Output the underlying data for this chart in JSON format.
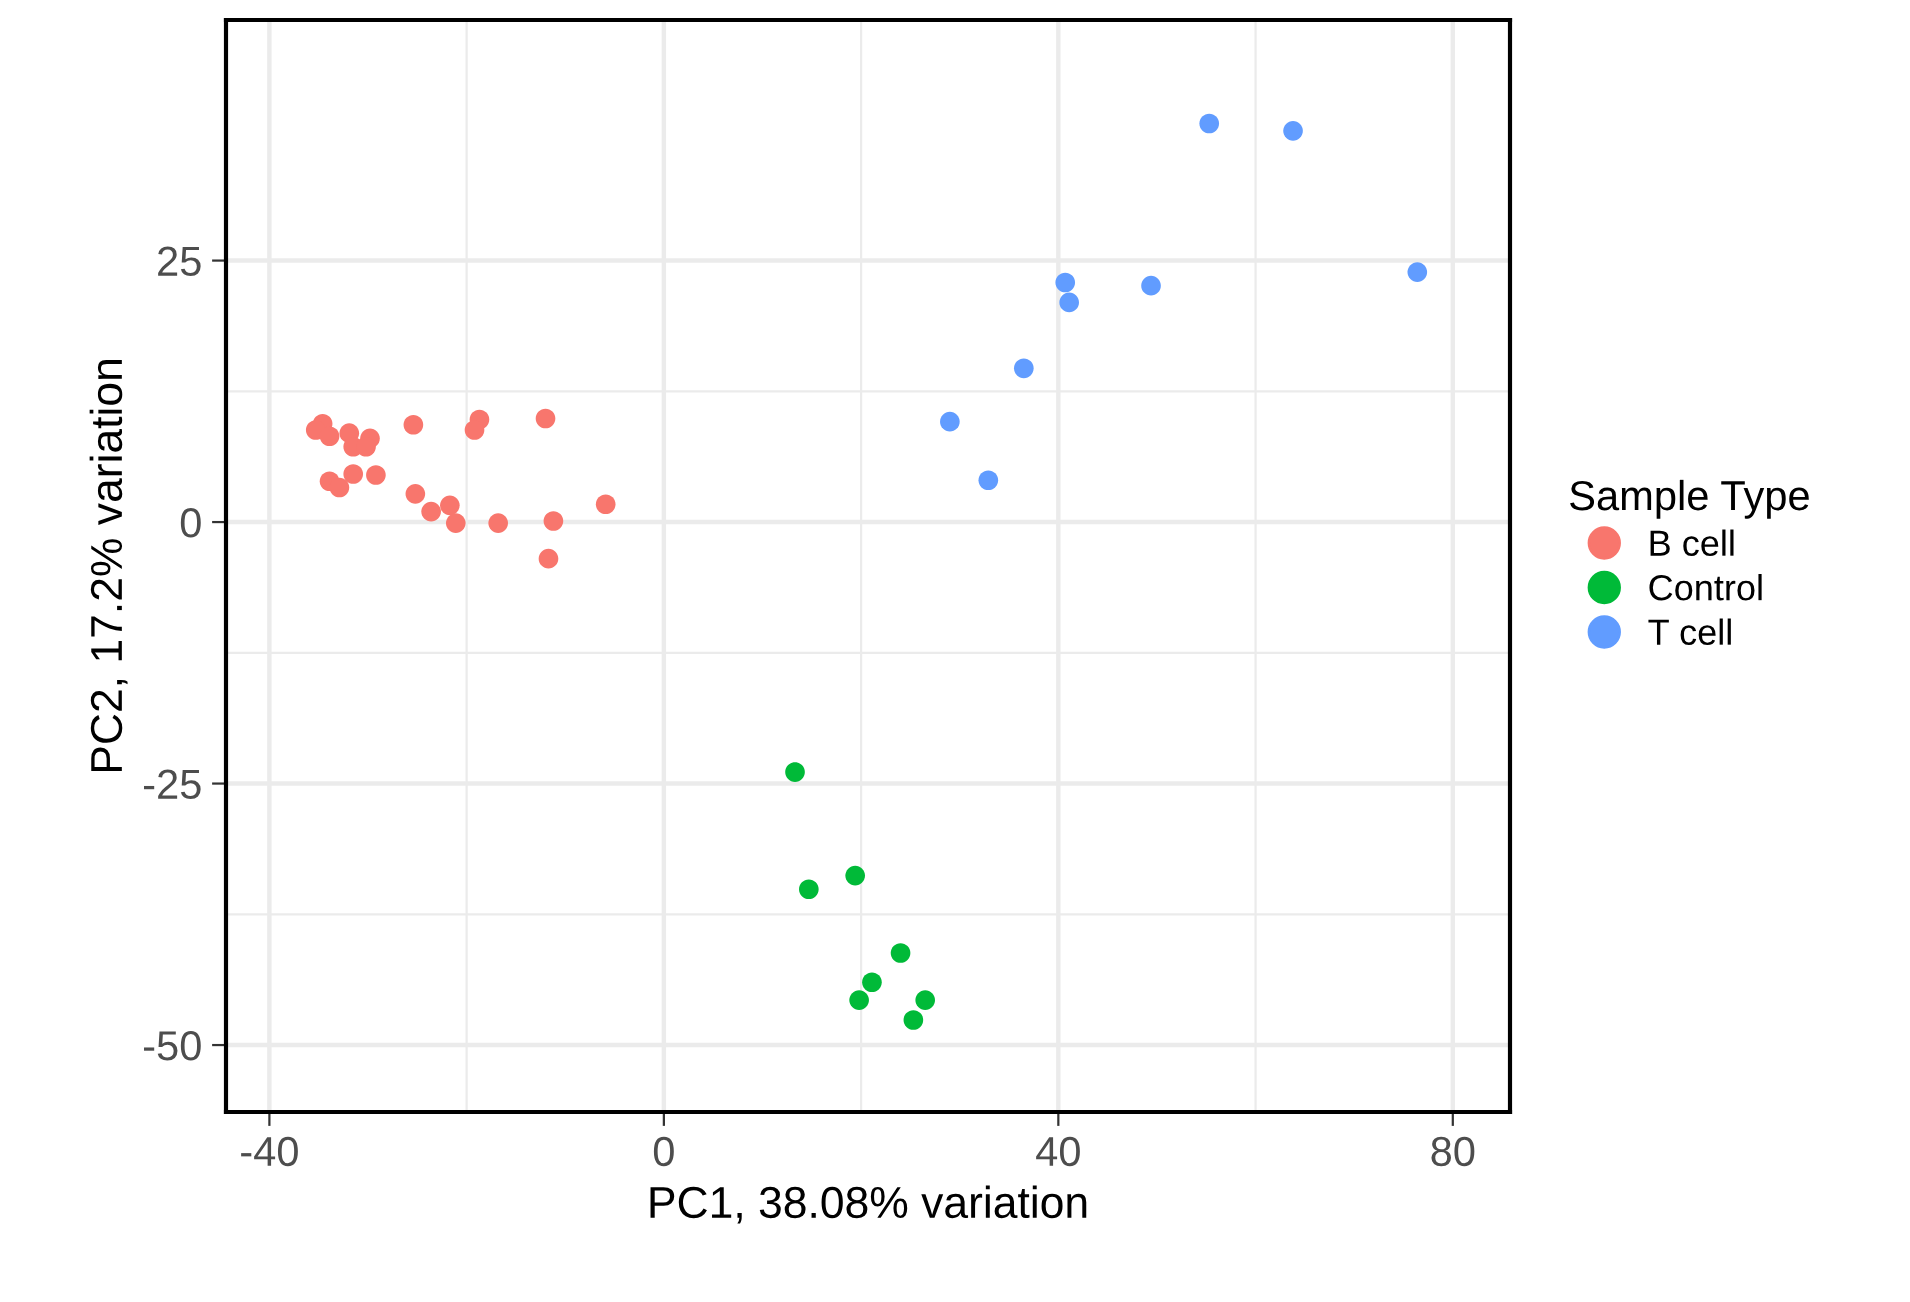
{
  "chart_data": {
    "type": "scatter",
    "xlabel": "PC1, 38.08% variation",
    "ylabel": "PC2, 17.2% variation",
    "legend_title": "Sample Type",
    "xlim": [
      -44.4,
      85.8
    ],
    "ylim": [
      -56.4,
      48.0
    ],
    "xticks": [
      -40,
      0,
      40,
      80
    ],
    "yticks": [
      -50,
      -25,
      0,
      25
    ],
    "grid": true,
    "legend": "right",
    "marker": "circle",
    "series": [
      {
        "name": "B cell",
        "color": "#f8766d",
        "x": [
          -34.6,
          -35.3,
          -33.9,
          -31.9,
          -29.8,
          -31.5,
          -30.2,
          -25.4,
          -18.7,
          -19.2,
          -12.0,
          -33.9,
          -32.9,
          -31.5,
          -29.2,
          -25.2,
          -23.6,
          -21.7,
          -21.1,
          -16.8,
          -11.2,
          -5.9,
          -11.7
        ],
        "values": [
          9.4,
          8.8,
          8.2,
          8.5,
          8.0,
          7.2,
          7.2,
          9.3,
          9.8,
          8.8,
          9.9,
          3.9,
          3.3,
          4.6,
          4.5,
          2.7,
          1.0,
          1.6,
          -0.1,
          -0.1,
          0.1,
          1.7,
          -3.5
        ]
      },
      {
        "name": "Control",
        "color": "#00ba38",
        "x": [
          13.3,
          14.7,
          19.4,
          24.0,
          21.1,
          19.8,
          26.5,
          25.3
        ],
        "values": [
          -23.9,
          -35.1,
          -33.8,
          -41.2,
          -44.0,
          -45.7,
          -45.7,
          -47.6
        ]
      },
      {
        "name": "T cell",
        "color": "#619cff",
        "x": [
          55.3,
          63.8,
          76.4,
          40.7,
          41.1,
          49.4,
          36.5,
          29.0,
          32.9
        ],
        "values": [
          38.1,
          37.4,
          23.9,
          22.9,
          21.0,
          22.6,
          14.7,
          9.6,
          4.0
        ]
      }
    ]
  }
}
